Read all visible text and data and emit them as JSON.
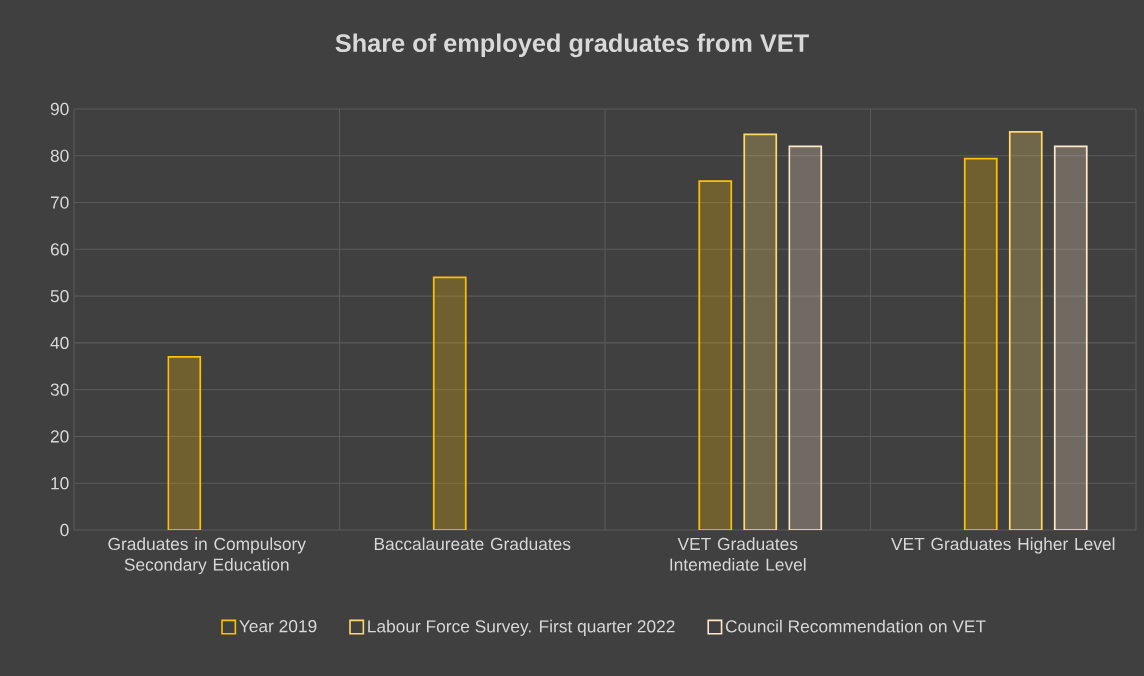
{
  "chart_data": {
    "type": "bar",
    "title": "Share of employed graduates from VET",
    "categories": [
      "Graduates in Compulsory Secondary Education",
      "Baccalaureate Graduates",
      "VET Graduates Intemediate Level",
      "VET Graduates Higher Level"
    ],
    "series": [
      {
        "name": "Year 2019",
        "color": "#ffc000",
        "values": [
          37,
          54,
          74.6,
          79.4
        ]
      },
      {
        "name": "Labour Force Survey. First quarter 2022",
        "color": "#ffd966",
        "values": [
          null,
          null,
          84.6,
          85.1
        ]
      },
      {
        "name": "Council Recommendation on VET",
        "color": "#ffe8c8",
        "values": [
          null,
          null,
          82,
          82
        ]
      }
    ],
    "ylim": [
      0,
      90
    ],
    "yticks": [
      0,
      10,
      20,
      30,
      40,
      50,
      60,
      70,
      80,
      90
    ],
    "grid": true,
    "legend": "bottom"
  }
}
